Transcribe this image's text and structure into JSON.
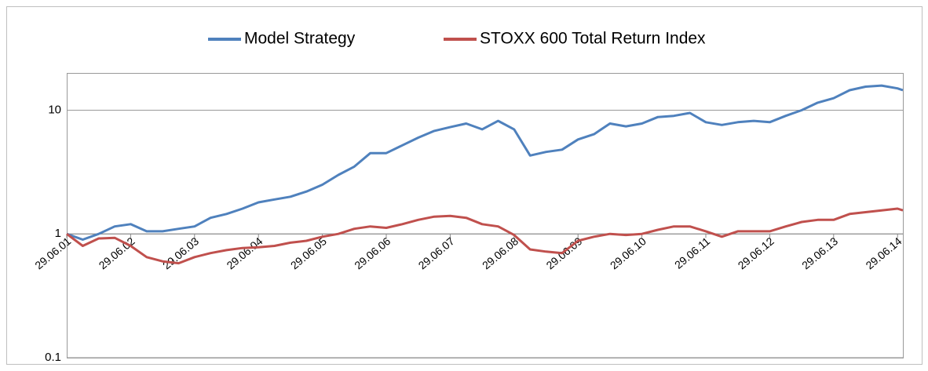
{
  "chart_data": {
    "type": "line",
    "log_scale": true,
    "grid": true,
    "legend": "top",
    "x": [
      "29.06.01",
      "29.09.01",
      "29.12.01",
      "29.03.02",
      "29.06.02",
      "29.09.02",
      "29.12.02",
      "29.03.03",
      "29.06.03",
      "29.09.03",
      "29.12.03",
      "29.03.04",
      "29.06.04",
      "29.09.04",
      "29.12.04",
      "29.03.05",
      "29.06.05",
      "29.09.05",
      "29.12.05",
      "29.03.06",
      "29.06.06",
      "29.09.06",
      "29.12.06",
      "29.03.07",
      "29.06.07",
      "29.09.07",
      "29.12.07",
      "29.03.08",
      "29.06.08",
      "29.09.08",
      "29.12.08",
      "29.03.09",
      "29.06.09",
      "29.09.09",
      "29.12.09",
      "29.03.10",
      "29.06.10",
      "29.09.10",
      "29.12.10",
      "29.03.11",
      "29.06.11",
      "29.09.11",
      "29.12.11",
      "29.03.12",
      "29.06.12",
      "29.09.12",
      "29.12.12",
      "29.03.13",
      "29.06.13",
      "29.09.13",
      "29.12.13",
      "29.03.14",
      "29.06.14",
      "29.07.14"
    ],
    "series": [
      {
        "name": "Model Strategy",
        "color": "#4f81bd",
        "values": [
          1.0,
          0.9,
          1.0,
          1.15,
          1.2,
          1.05,
          1.05,
          1.1,
          1.15,
          1.35,
          1.45,
          1.6,
          1.8,
          1.9,
          2.0,
          2.2,
          2.5,
          3.0,
          3.5,
          4.5,
          4.5,
          5.2,
          6.0,
          6.8,
          7.3,
          7.8,
          7.0,
          8.2,
          7.0,
          4.3,
          4.6,
          4.8,
          5.8,
          6.4,
          7.8,
          7.4,
          7.8,
          8.8,
          9.0,
          9.5,
          8.0,
          7.6,
          8.0,
          8.2,
          8.0,
          9.0,
          10.0,
          11.5,
          12.5,
          14.5,
          15.5,
          15.8,
          15.0,
          14.5
        ]
      },
      {
        "name": "STOXX 600 Total Return Index",
        "color": "#c0504d",
        "values": [
          1.0,
          0.8,
          0.92,
          0.93,
          0.8,
          0.65,
          0.6,
          0.58,
          0.65,
          0.7,
          0.74,
          0.77,
          0.78,
          0.8,
          0.85,
          0.88,
          0.95,
          1.0,
          1.1,
          1.15,
          1.12,
          1.2,
          1.3,
          1.38,
          1.4,
          1.35,
          1.2,
          1.15,
          0.98,
          0.75,
          0.72,
          0.7,
          0.88,
          0.95,
          1.0,
          0.98,
          1.0,
          1.08,
          1.15,
          1.15,
          1.05,
          0.95,
          1.05,
          1.05,
          1.05,
          1.15,
          1.25,
          1.3,
          1.3,
          1.45,
          1.5,
          1.55,
          1.6,
          1.55
        ]
      }
    ],
    "xlim": [
      "29.06.01",
      "29.07.14"
    ],
    "xticks": [
      "29.06.01",
      "29.06.02",
      "29.06.03",
      "29.06.04",
      "29.06.05",
      "29.06.06",
      "29.06.07",
      "29.06.08",
      "29.06.09",
      "29.06.10",
      "29.06.11",
      "29.06.12",
      "29.06.13",
      "29.06.14"
    ],
    "xaxis_crosses": 1,
    "ylim": [
      0.1,
      20
    ],
    "yticks": [
      0.1,
      1,
      10
    ]
  }
}
